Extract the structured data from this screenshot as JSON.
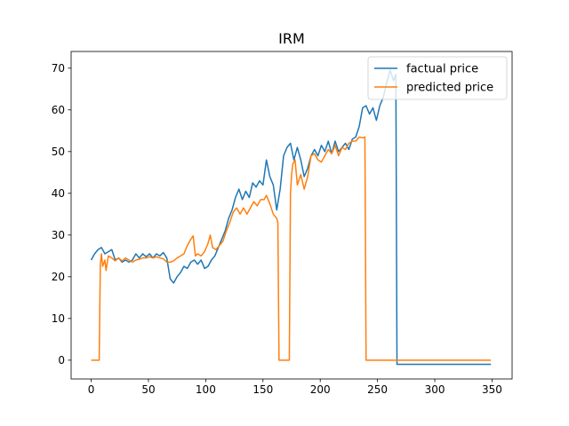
{
  "chart_data": {
    "type": "line",
    "title": "IRM",
    "xlabel": "",
    "ylabel": "",
    "xlim": [
      -17.5,
      367.5
    ],
    "ylim": [
      -4.5,
      74
    ],
    "x_ticks": [
      0,
      50,
      100,
      150,
      200,
      250,
      300,
      350
    ],
    "y_ticks": [
      0,
      10,
      20,
      30,
      40,
      50,
      60,
      70
    ],
    "grid": false,
    "legend_position": "top-right",
    "series": [
      {
        "name": "factual price",
        "color": "#1f77b4",
        "points": [
          [
            0,
            24
          ],
          [
            3,
            25.5
          ],
          [
            6,
            26.5
          ],
          [
            9,
            27
          ],
          [
            12,
            25.5
          ],
          [
            15,
            26
          ],
          [
            18,
            26.5
          ],
          [
            21,
            24
          ],
          [
            24,
            24.5
          ],
          [
            27,
            23.5
          ],
          [
            30,
            24
          ],
          [
            33,
            23.5
          ],
          [
            36,
            24
          ],
          [
            39,
            25.5
          ],
          [
            42,
            24.5
          ],
          [
            45,
            25.5
          ],
          [
            48,
            24.8
          ],
          [
            51,
            25.5
          ],
          [
            54,
            24.5
          ],
          [
            57,
            25.5
          ],
          [
            60,
            25
          ],
          [
            63,
            25.8
          ],
          [
            66,
            24.5
          ],
          [
            69,
            19.5
          ],
          [
            72,
            18.5
          ],
          [
            75,
            20
          ],
          [
            78,
            21
          ],
          [
            81,
            22.5
          ],
          [
            84,
            22
          ],
          [
            87,
            23.5
          ],
          [
            90,
            24
          ],
          [
            93,
            23
          ],
          [
            96,
            24
          ],
          [
            99,
            22
          ],
          [
            102,
            22.5
          ],
          [
            105,
            24
          ],
          [
            108,
            25
          ],
          [
            111,
            27
          ],
          [
            114,
            29
          ],
          [
            117,
            31
          ],
          [
            120,
            34
          ],
          [
            123,
            36
          ],
          [
            126,
            39
          ],
          [
            129,
            41
          ],
          [
            132,
            38.5
          ],
          [
            135,
            40.5
          ],
          [
            138,
            39
          ],
          [
            141,
            42.5
          ],
          [
            144,
            41.5
          ],
          [
            147,
            43
          ],
          [
            150,
            42
          ],
          [
            153,
            48
          ],
          [
            156,
            44
          ],
          [
            159,
            42
          ],
          [
            162,
            36
          ],
          [
            165,
            41
          ],
          [
            168,
            49
          ],
          [
            171,
            51
          ],
          [
            174,
            52
          ],
          [
            177,
            48
          ],
          [
            180,
            51
          ],
          [
            183,
            48
          ],
          [
            186,
            44
          ],
          [
            189,
            46
          ],
          [
            192,
            49
          ],
          [
            195,
            50.5
          ],
          [
            198,
            49
          ],
          [
            201,
            51.5
          ],
          [
            204,
            50
          ],
          [
            207,
            52.5
          ],
          [
            210,
            49.5
          ],
          [
            213,
            52.5
          ],
          [
            216,
            50
          ],
          [
            219,
            51
          ],
          [
            222,
            52
          ],
          [
            225,
            50.5
          ],
          [
            228,
            53
          ],
          [
            231,
            53.5
          ],
          [
            234,
            56
          ],
          [
            237,
            60.5
          ],
          [
            240,
            61
          ],
          [
            243,
            59
          ],
          [
            246,
            60.5
          ],
          [
            249,
            57.5
          ],
          [
            252,
            61
          ],
          [
            255,
            63
          ],
          [
            258,
            66.5
          ],
          [
            261,
            69.5
          ],
          [
            264,
            67
          ],
          [
            266,
            68.5
          ],
          [
            267,
            -1
          ],
          [
            300,
            -1
          ],
          [
            349,
            -1
          ]
        ]
      },
      {
        "name": "predicted price",
        "color": "#ff7f0e",
        "points": [
          [
            0,
            0
          ],
          [
            6,
            0
          ],
          [
            7,
            0
          ],
          [
            8,
            23
          ],
          [
            9,
            25.5
          ],
          [
            10,
            22.5
          ],
          [
            12,
            24
          ],
          [
            13,
            21.5
          ],
          [
            15,
            25
          ],
          [
            18,
            24.5
          ],
          [
            21,
            23.8
          ],
          [
            24,
            24.5
          ],
          [
            27,
            23.8
          ],
          [
            30,
            24.5
          ],
          [
            33,
            24
          ],
          [
            36,
            23.5
          ],
          [
            39,
            24
          ],
          [
            42,
            24.2
          ],
          [
            45,
            24.5
          ],
          [
            48,
            24.5
          ],
          [
            51,
            24.8
          ],
          [
            54,
            24.5
          ],
          [
            57,
            24.8
          ],
          [
            60,
            24.5
          ],
          [
            63,
            24.3
          ],
          [
            66,
            23.5
          ],
          [
            69,
            23.5
          ],
          [
            72,
            23.8
          ],
          [
            75,
            24.5
          ],
          [
            78,
            25
          ],
          [
            81,
            25.5
          ],
          [
            84,
            27.5
          ],
          [
            87,
            29
          ],
          [
            89,
            29.8
          ],
          [
            91,
            25
          ],
          [
            93,
            25.5
          ],
          [
            96,
            25
          ],
          [
            99,
            26
          ],
          [
            102,
            28
          ],
          [
            104,
            30
          ],
          [
            106,
            27
          ],
          [
            109,
            26.5
          ],
          [
            112,
            27.5
          ],
          [
            115,
            28.5
          ],
          [
            118,
            31
          ],
          [
            121,
            33
          ],
          [
            124,
            35.5
          ],
          [
            127,
            36.5
          ],
          [
            130,
            35
          ],
          [
            133,
            36.5
          ],
          [
            136,
            35
          ],
          [
            139,
            36.5
          ],
          [
            142,
            38
          ],
          [
            145,
            37
          ],
          [
            148,
            38.5
          ],
          [
            151,
            38.5
          ],
          [
            153,
            39.5
          ],
          [
            156,
            37.5
          ],
          [
            159,
            35
          ],
          [
            162,
            34
          ],
          [
            163,
            33
          ],
          [
            164,
            0
          ],
          [
            173,
            0
          ],
          [
            174,
            40
          ],
          [
            175,
            44.5
          ],
          [
            176,
            47
          ],
          [
            178,
            48
          ],
          [
            180,
            42
          ],
          [
            183,
            44.5
          ],
          [
            186,
            41
          ],
          [
            189,
            44
          ],
          [
            192,
            49
          ],
          [
            195,
            49.5
          ],
          [
            198,
            48
          ],
          [
            201,
            47.5
          ],
          [
            204,
            49
          ],
          [
            207,
            50.5
          ],
          [
            210,
            49.5
          ],
          [
            213,
            51.5
          ],
          [
            216,
            49
          ],
          [
            219,
            51
          ],
          [
            222,
            50.5
          ],
          [
            225,
            52
          ],
          [
            228,
            52.5
          ],
          [
            231,
            52.5
          ],
          [
            234,
            53.5
          ],
          [
            237,
            53.3
          ],
          [
            239,
            53.5
          ],
          [
            240,
            0
          ],
          [
            300,
            0
          ],
          [
            349,
            0
          ]
        ]
      }
    ]
  }
}
